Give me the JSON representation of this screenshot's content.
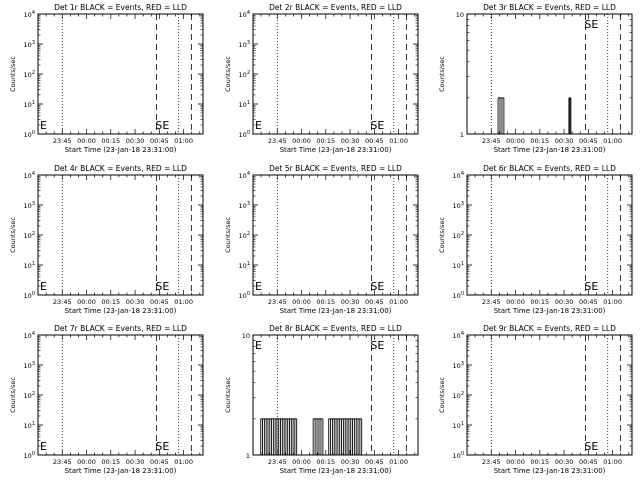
{
  "figure": {
    "start_time_label": "Start Time (23-Jan-18 23:31:00)",
    "y_axis_label": "Counts/sec",
    "time_ticks": [
      "23:45",
      "00:00",
      "00:15",
      "00:30",
      "00:45",
      "01:00"
    ],
    "marker_labels": {
      "S": "S",
      "E": "E"
    }
  },
  "chart_data": [
    {
      "type": "line",
      "title": "Det 1r BLACK = Events, RED = LLD",
      "yscale": "log",
      "ylim": [
        1,
        10000
      ],
      "ytick_labels": [
        "10^0",
        "10^1",
        "10^2",
        "10^3",
        "10^4"
      ],
      "markers": [
        "E-left",
        "S",
        "E"
      ],
      "series": [
        {
          "name": "Events",
          "color": "#000000",
          "bursts": []
        }
      ]
    },
    {
      "type": "line",
      "title": "Det 2r BLACK = Events, RED = LLD",
      "yscale": "log",
      "ylim": [
        1,
        10000
      ],
      "ytick_labels": [
        "10^0",
        "10^1",
        "10^2",
        "10^3",
        "10^4"
      ],
      "markers": [
        "E-left",
        "S",
        "E"
      ],
      "series": [
        {
          "name": "Events",
          "color": "#000000",
          "bursts": []
        }
      ]
    },
    {
      "type": "line",
      "title": "Det 3r BLACK = Events, RED = LLD",
      "yscale": "log",
      "ylim": [
        1,
        10
      ],
      "ytick_labels": [
        "1",
        "10"
      ],
      "markers": [
        "S",
        "E"
      ],
      "series": [
        {
          "name": "Events",
          "color": "#000000",
          "bursts": [
            [
              23.82,
              23.88,
              2
            ],
            [
              0.55,
              0.57,
              2
            ]
          ]
        }
      ]
    },
    {
      "type": "line",
      "title": "Det 4r BLACK = Events, RED = LLD",
      "yscale": "log",
      "ylim": [
        1,
        10000
      ],
      "ytick_labels": [
        "10^0",
        "10^1",
        "10^2",
        "10^3",
        "10^4"
      ],
      "markers": [
        "E-left",
        "S",
        "E"
      ],
      "series": [
        {
          "name": "Events",
          "color": "#000000",
          "bursts": []
        }
      ]
    },
    {
      "type": "line",
      "title": "Det 5r BLACK = Events, RED = LLD",
      "yscale": "log",
      "ylim": [
        1,
        10000
      ],
      "ytick_labels": [
        "10^0",
        "10^1",
        "10^2",
        "10^3",
        "10^4"
      ],
      "markers": [
        "E-left",
        "S",
        "E"
      ],
      "series": [
        {
          "name": "Events",
          "color": "#000000",
          "bursts": []
        }
      ]
    },
    {
      "type": "line",
      "title": "Det 6r BLACK = Events, RED = LLD",
      "yscale": "log",
      "ylim": [
        1,
        10000
      ],
      "ytick_labels": [
        "10^0",
        "10^1",
        "10^2",
        "10^3",
        "10^4"
      ],
      "markers": [
        "S",
        "E"
      ],
      "series": [
        {
          "name": "Events",
          "color": "#000000",
          "bursts": []
        }
      ]
    },
    {
      "type": "line",
      "title": "Det 7r BLACK = Events, RED = LLD",
      "yscale": "log",
      "ylim": [
        1,
        10000
      ],
      "ytick_labels": [
        "10^0",
        "10^1",
        "10^2",
        "10^3",
        "10^4"
      ],
      "markers": [
        "E-left",
        "S",
        "E"
      ],
      "series": [
        {
          "name": "Events",
          "color": "#000000",
          "bursts": []
        }
      ]
    },
    {
      "type": "line",
      "title": "Det 8r BLACK = Events, RED = LLD",
      "yscale": "log",
      "ylim": [
        1,
        10
      ],
      "ytick_labels": [
        "1",
        "10"
      ],
      "markers": [
        "E-left",
        "S",
        "E"
      ],
      "series": [
        {
          "name": "Events",
          "color": "#000000",
          "bursts": [
            [
              23.58,
              23.95,
              2
            ],
            [
              0.12,
              0.22,
              2
            ],
            [
              0.28,
              0.62,
              2
            ]
          ]
        }
      ]
    },
    {
      "type": "line",
      "title": "Det 9r BLACK = Events, RED = LLD",
      "yscale": "log",
      "ylim": [
        1,
        10000
      ],
      "ytick_labels": [
        "10^0",
        "10^1",
        "10^2",
        "10^3",
        "10^4"
      ],
      "markers": [
        "S",
        "E"
      ],
      "series": [
        {
          "name": "Events",
          "color": "#000000",
          "bursts": []
        }
      ]
    }
  ]
}
